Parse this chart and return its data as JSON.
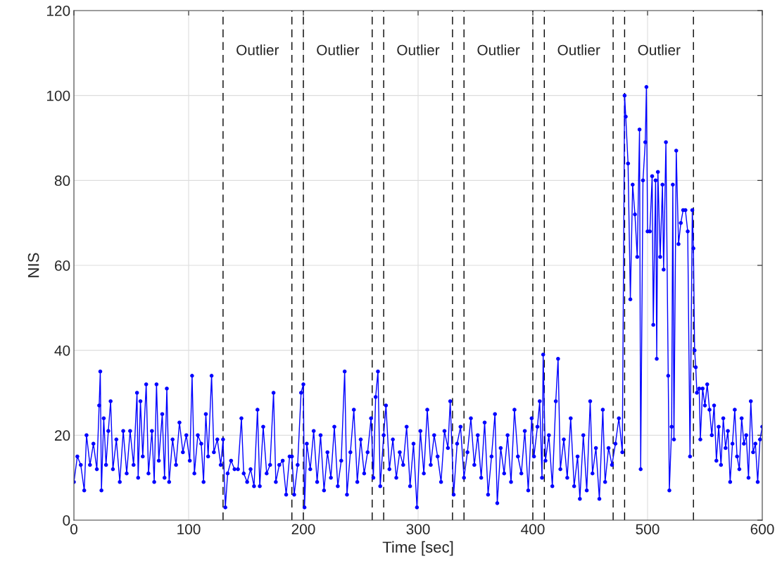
{
  "chart_data": {
    "type": "line",
    "xlabel": "Time [sec]",
    "ylabel": "NIS",
    "xlim": [
      0,
      600
    ],
    "ylim": [
      0,
      120
    ],
    "xticks": [
      0,
      100,
      200,
      300,
      400,
      500,
      600
    ],
    "yticks": [
      0,
      20,
      40,
      60,
      80,
      100,
      120
    ],
    "grid": true,
    "marker": "circle",
    "line_style": "solid",
    "ref_lines": [
      {
        "axis": "x",
        "value": 130,
        "color": "#000000",
        "line_style": "dashed"
      },
      {
        "axis": "x",
        "value": 190,
        "color": "#000000",
        "line_style": "dashed"
      },
      {
        "axis": "x",
        "value": 200,
        "color": "#000000",
        "line_style": "dashed"
      },
      {
        "axis": "x",
        "value": 260,
        "color": "#000000",
        "line_style": "dashed"
      },
      {
        "axis": "x",
        "value": 270,
        "color": "#000000",
        "line_style": "dashed"
      },
      {
        "axis": "x",
        "value": 330,
        "color": "#000000",
        "line_style": "dashed"
      },
      {
        "axis": "x",
        "value": 340,
        "color": "#000000",
        "line_style": "dashed"
      },
      {
        "axis": "x",
        "value": 400,
        "color": "#000000",
        "line_style": "dashed"
      },
      {
        "axis": "x",
        "value": 410,
        "color": "#000000",
        "line_style": "dashed"
      },
      {
        "axis": "x",
        "value": 470,
        "color": "#000000",
        "line_style": "dashed"
      },
      {
        "axis": "x",
        "value": 480,
        "color": "#000000",
        "line_style": "dashed"
      },
      {
        "axis": "x",
        "value": 540,
        "color": "#000000",
        "line_style": "dashed"
      }
    ],
    "annotations": [
      "Outlier",
      "Outlier",
      "Outlier",
      "Outlier",
      "Outlier",
      "Outlier"
    ],
    "series": [
      {
        "color": "#0000ff",
        "x": [
          0,
          3,
          6,
          9,
          11,
          14,
          17,
          20,
          22,
          23,
          24,
          26,
          28,
          30,
          32,
          34,
          37,
          40,
          43,
          46,
          49,
          52,
          55,
          56,
          58,
          60,
          63,
          65,
          68,
          70,
          72,
          74,
          77,
          79,
          81,
          83,
          86,
          89,
          92,
          95,
          98,
          101,
          103,
          105,
          108,
          111,
          113,
          115,
          117,
          120,
          122,
          125,
          128,
          130,
          132,
          134,
          137,
          140,
          143,
          146,
          148,
          151,
          154,
          157,
          160,
          162,
          165,
          168,
          171,
          174,
          176,
          179,
          182,
          185,
          188,
          190,
          192,
          195,
          198,
          200,
          201,
          203,
          206,
          209,
          212,
          215,
          218,
          221,
          224,
          227,
          230,
          233,
          236,
          238,
          241,
          244,
          247,
          250,
          253,
          256,
          259,
          261,
          263,
          265,
          267,
          270,
          272,
          275,
          278,
          281,
          284,
          287,
          290,
          293,
          296,
          299,
          302,
          305,
          308,
          311,
          314,
          317,
          320,
          323,
          326,
          328,
          331,
          334,
          337,
          340,
          343,
          346,
          349,
          352,
          355,
          358,
          361,
          364,
          367,
          369,
          372,
          375,
          378,
          381,
          384,
          387,
          390,
          393,
          396,
          399,
          401,
          404,
          406,
          408,
          409,
          411,
          414,
          417,
          420,
          422,
          424,
          427,
          430,
          433,
          436,
          439,
          441,
          444,
          447,
          450,
          452,
          455,
          458,
          461,
          463,
          466,
          469,
          472,
          475,
          478,
          480,
          481,
          483,
          485,
          487,
          489,
          491,
          493,
          494,
          496,
          498,
          499,
          500,
          502,
          504,
          505,
          507,
          508,
          509,
          511,
          513,
          514,
          516,
          518,
          519,
          521,
          522,
          523,
          525,
          527,
          529,
          531,
          533,
          535,
          537,
          539,
          540,
          541,
          542,
          543,
          545,
          546,
          548,
          550,
          552,
          554,
          556,
          558,
          560,
          562,
          564,
          566,
          568,
          570,
          572,
          574,
          576,
          578,
          580,
          582,
          584,
          586,
          588,
          590,
          592,
          594,
          596,
          598,
          600
        ],
        "values": [
          9,
          15,
          13,
          7,
          20,
          13,
          18,
          12,
          27,
          35,
          7,
          24,
          13,
          21,
          28,
          12,
          19,
          9,
          21,
          11,
          21,
          13,
          30,
          10,
          28,
          15,
          32,
          11,
          21,
          9,
          32,
          14,
          25,
          10,
          31,
          9,
          19,
          13,
          23,
          16,
          20,
          14,
          34,
          11,
          20,
          18,
          9,
          25,
          15,
          34,
          16,
          19,
          13,
          19,
          3,
          11,
          14,
          12,
          12,
          24,
          11,
          9,
          12,
          8,
          26,
          8,
          22,
          11,
          13,
          30,
          9,
          13,
          14,
          6,
          15,
          15,
          6,
          13,
          30,
          32,
          3,
          18,
          12,
          21,
          9,
          20,
          7,
          16,
          10,
          22,
          8,
          14,
          35,
          6,
          16,
          26,
          9,
          19,
          11,
          16,
          24,
          10,
          29,
          35,
          8,
          20,
          27,
          12,
          19,
          10,
          16,
          13,
          22,
          8,
          18,
          3,
          21,
          11,
          26,
          13,
          20,
          15,
          9,
          21,
          17,
          28,
          6,
          18,
          22,
          10,
          16,
          24,
          13,
          20,
          10,
          23,
          6,
          15,
          25,
          4,
          17,
          11,
          20,
          9,
          26,
          15,
          11,
          21,
          7,
          24,
          15,
          22,
          28,
          10,
          39,
          14,
          20,
          8,
          28,
          38,
          12,
          19,
          10,
          24,
          8,
          15,
          5,
          20,
          7,
          28,
          11,
          17,
          5,
          26,
          9,
          17,
          13,
          18,
          24,
          16,
          100,
          95,
          84,
          52,
          79,
          72,
          62,
          92,
          12,
          80,
          89,
          102,
          68,
          68,
          81,
          46,
          80,
          38,
          82,
          62,
          79,
          59,
          89,
          34,
          7,
          22,
          79,
          19,
          87,
          65,
          70,
          73,
          73,
          68,
          15,
          73,
          64,
          40,
          36,
          30,
          31,
          19,
          31,
          27,
          32,
          26,
          20,
          27,
          14,
          22,
          13,
          24,
          17,
          21,
          9,
          18,
          26,
          15,
          12,
          24,
          18,
          20,
          10,
          28,
          16,
          18,
          9,
          19,
          22
        ]
      }
    ]
  }
}
